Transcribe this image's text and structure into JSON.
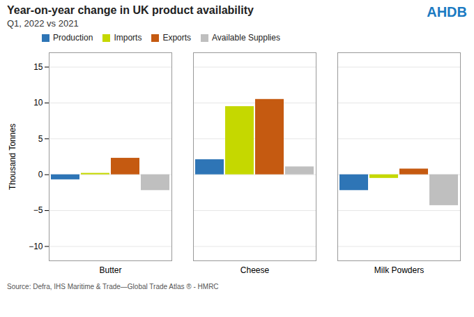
{
  "chart_data": {
    "type": "bar",
    "title": "Year-on-year change in UK product availability",
    "subtitle": "Q1, 2022 vs 2021",
    "categories": [
      "Butter",
      "Cheese",
      "Milk Powders"
    ],
    "series": [
      {
        "name": "Production",
        "color": "#2E75B6",
        "values": [
          -0.7,
          2.1,
          -2.2
        ]
      },
      {
        "name": "Imports",
        "color": "#C5D800",
        "values": [
          0.2,
          9.5,
          -0.5
        ]
      },
      {
        "name": "Exports",
        "color": "#C55A11",
        "values": [
          2.3,
          10.5,
          0.8
        ]
      },
      {
        "name": "Available Supplies",
        "color": "#BFBFBF",
        "values": [
          -2.2,
          1.1,
          -4.3
        ]
      }
    ],
    "ylabel": "Thousand Tonnes",
    "ylim": [
      -12,
      17
    ],
    "yticks": [
      -10,
      -5,
      0,
      5,
      10,
      15
    ],
    "grid": true,
    "legend": "upper left",
    "source": "Source: Defra, IHS Maritime & Trade—Global Trade Atlas ®  - HMRC",
    "annotations": [
      "AHDB"
    ]
  }
}
